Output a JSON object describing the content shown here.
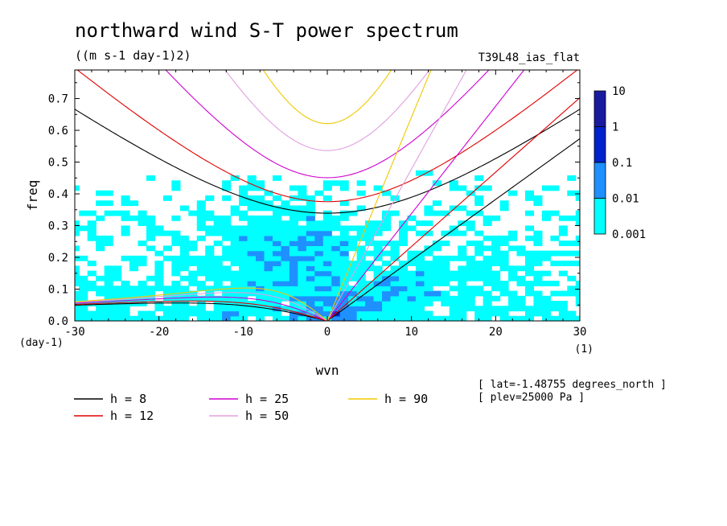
{
  "chart_data": {
    "type": "heatmap",
    "title": "northward wind S-T power spectrum",
    "units": "((m s-1 day-1)2)",
    "run_label": "T39L48_ias_flat",
    "xlabel": "wvn",
    "ylabel": "freq",
    "x_unit_label": "(1)",
    "y_unit_label": "(day-1)",
    "xlim": [
      -30,
      30
    ],
    "ylim": [
      0,
      0.79
    ],
    "x_ticks": [
      -30,
      -20,
      -10,
      0,
      10,
      20,
      30
    ],
    "x_tick_labels": [
      "-30",
      "-20",
      "-10",
      "0",
      "10",
      "20",
      "30"
    ],
    "y_ticks": [
      0,
      0.1,
      0.2,
      0.3,
      0.4,
      0.5,
      0.6,
      0.7
    ],
    "y_tick_labels": [
      "0.0",
      "0.1",
      "0.2",
      "0.3",
      "0.4",
      "0.5",
      "0.6",
      "0.7"
    ],
    "colorbar": {
      "levels": [
        0.001,
        0.01,
        0.1,
        1,
        10
      ],
      "level_labels": [
        "0.001",
        "0.01",
        "0.1",
        "1",
        "10"
      ],
      "colors": [
        "#00ffff",
        "#1e90ff",
        "#0022cc",
        "#1a1aa0",
        "#4b0aa0"
      ]
    },
    "dispersion_curves": [
      {
        "label": "h =  8",
        "h": 8,
        "color": "#000000"
      },
      {
        "label": "h = 12",
        "h": 12,
        "color": "#e00000"
      },
      {
        "label": "h = 25",
        "h": 25,
        "color": "#d000d0"
      },
      {
        "label": "h = 50",
        "h": 50,
        "color": "#e0a0e0"
      },
      {
        "label": "h = 90",
        "h": 90,
        "color": "#f0c800"
      }
    ],
    "info": [
      "[ lat=-1.48755 degrees_north ]",
      "[ plev=25000 Pa ]"
    ]
  }
}
